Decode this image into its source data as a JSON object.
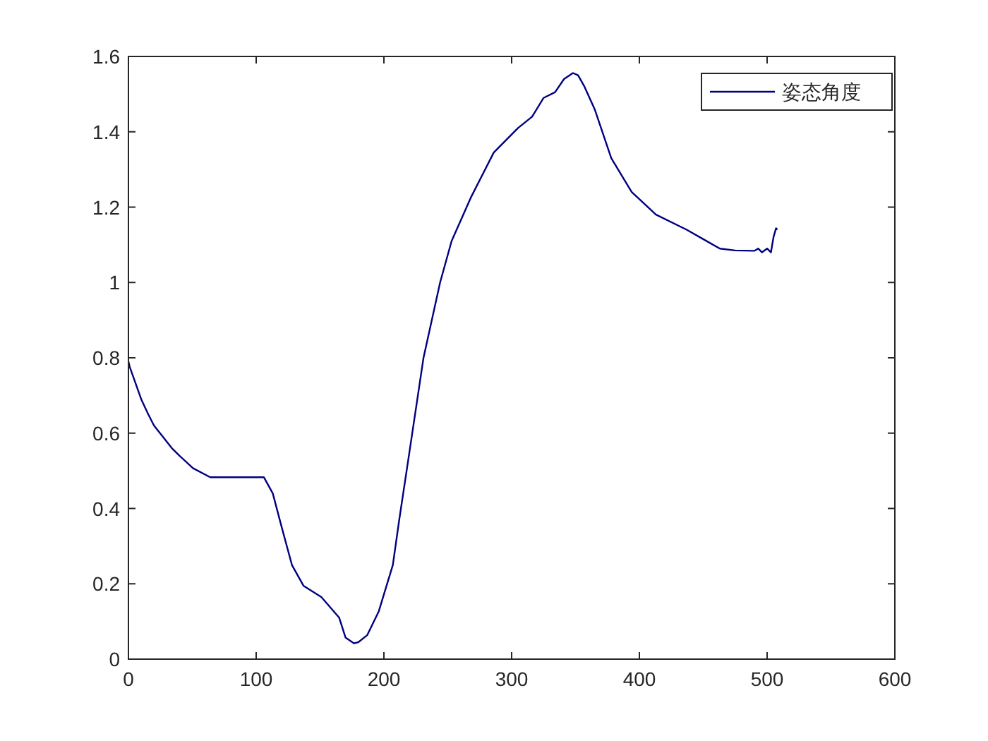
{
  "chart_data": {
    "type": "line",
    "legend": "top right",
    "xlim": [
      0,
      600
    ],
    "ylim": [
      0,
      1.6
    ],
    "xticks": [
      0,
      100,
      200,
      300,
      400,
      500,
      600
    ],
    "yticks": [
      0,
      0.2,
      0.4,
      0.6,
      0.8,
      1,
      1.2,
      1.4,
      1.6
    ],
    "grid": false,
    "series": [
      {
        "name": "姿态角度",
        "color": "#000080",
        "x": [
          0,
          1,
          10,
          15.5,
          20,
          34,
          40,
          50.5,
          64,
          106,
          113,
          120,
          128,
          137,
          151,
          165,
          170,
          176.5,
          180,
          187,
          196,
          207,
          212,
          220,
          231,
          244,
          253,
          268,
          286,
          305,
          316,
          325,
          334,
          341,
          348,
          352,
          357,
          365,
          378,
          394,
          413,
          437,
          450,
          463,
          475,
          490,
          493,
          496,
          500,
          503,
          505,
          507,
          508
        ],
        "values": [
          0.79,
          0.776,
          0.69,
          0.65,
          0.62,
          0.56,
          0.54,
          0.507,
          0.483,
          0.483,
          0.44,
          0.35,
          0.25,
          0.195,
          0.165,
          0.11,
          0.057,
          0.042,
          0.045,
          0.064,
          0.127,
          0.25,
          0.37,
          0.55,
          0.8,
          1.0,
          1.11,
          1.225,
          1.345,
          1.41,
          1.44,
          1.49,
          1.505,
          1.54,
          1.556,
          1.55,
          1.52,
          1.46,
          1.33,
          1.24,
          1.18,
          1.14,
          1.115,
          1.09,
          1.085,
          1.084,
          1.09,
          1.08,
          1.09,
          1.08,
          1.12,
          1.144,
          1.14
        ]
      }
    ]
  }
}
